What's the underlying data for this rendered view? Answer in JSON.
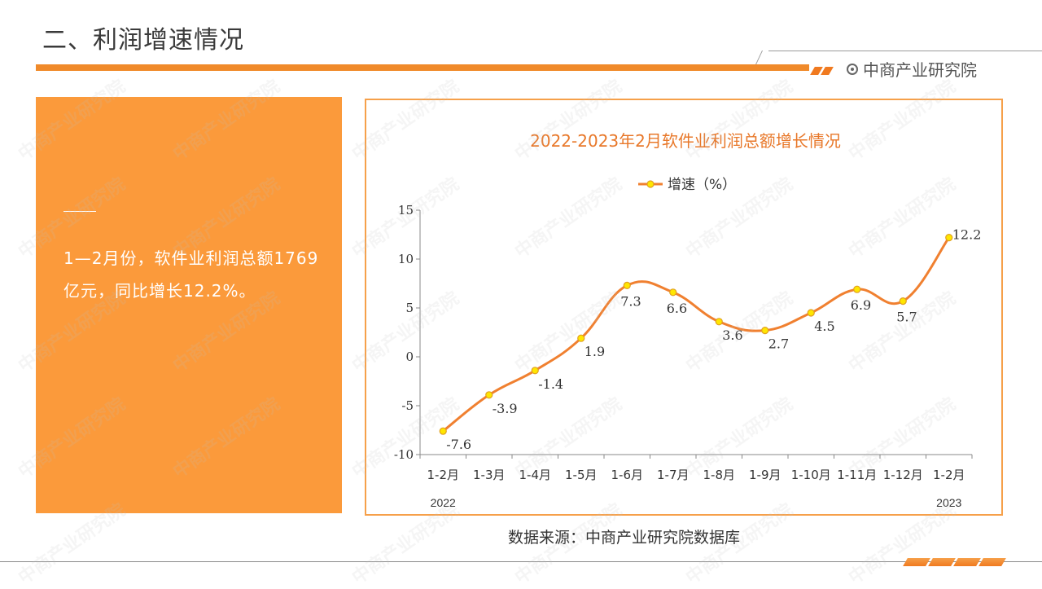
{
  "header": {
    "title": "二、利润增速情况",
    "brand": "中商产业研究院"
  },
  "summary": {
    "text": "1—2月份，软件业利润总额1769亿元，同比增长12.2%。"
  },
  "watermark": "中商产业研究院",
  "source": "数据来源：中商产业研究院数据库",
  "colors": {
    "accent": "#f08a2a",
    "panel": "#fb9a3b",
    "line": "#f08030",
    "marker_fill": "#ffe600",
    "marker_stroke": "#e0a020",
    "title": "#e8782a"
  },
  "chart_data": {
    "type": "line",
    "title": "2022-2023年2月软件业利润总额增长情况",
    "categories": [
      "1-2月",
      "1-3月",
      "1-4月",
      "1-5月",
      "1-6月",
      "1-7月",
      "1-8月",
      "1-9月",
      "1-10月",
      "1-11月",
      "1-12月",
      "1-2月"
    ],
    "year_labels": [
      "2022",
      "2023"
    ],
    "series": [
      {
        "name": "增速（%）",
        "values": [
          -7.6,
          -3.9,
          -1.4,
          1.9,
          7.3,
          6.6,
          3.6,
          2.7,
          4.5,
          6.9,
          5.7,
          12.2
        ]
      }
    ],
    "ylim": [
      -10,
      15
    ],
    "yticks": [
      15,
      10,
      5,
      0,
      -5,
      -10
    ],
    "legend": "top-center",
    "grid": false,
    "smooth": true
  }
}
